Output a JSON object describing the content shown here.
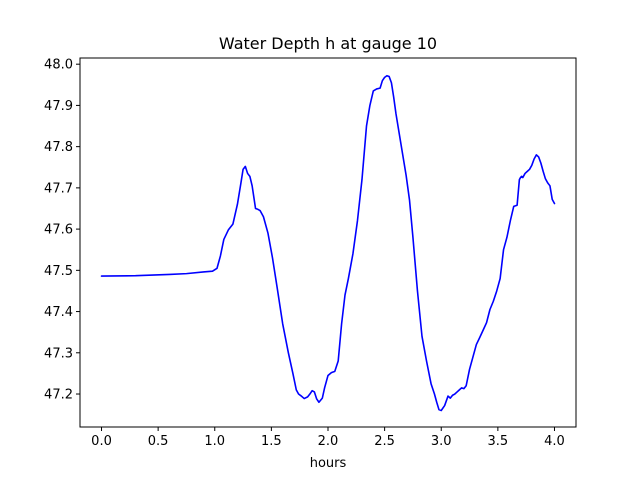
{
  "chart_data": {
    "type": "line",
    "title": "Water Depth h at gauge 10",
    "xlabel": "hours",
    "ylabel": "",
    "xlim": [
      -0.19,
      4.19
    ],
    "ylim": [
      47.12,
      48.015
    ],
    "xticks": [
      0.0,
      0.5,
      1.0,
      1.5,
      2.0,
      2.5,
      3.0,
      3.5,
      4.0
    ],
    "xtick_labels": [
      "0.0",
      "0.5",
      "1.0",
      "1.5",
      "2.0",
      "2.5",
      "3.0",
      "3.5",
      "4.0"
    ],
    "yticks": [
      47.2,
      47.3,
      47.4,
      47.5,
      47.6,
      47.7,
      47.8,
      47.9,
      48.0
    ],
    "ytick_labels": [
      "47.2",
      "47.3",
      "47.4",
      "47.5",
      "47.6",
      "47.7",
      "47.8",
      "47.9",
      "48.0"
    ],
    "grid": false,
    "series": [
      {
        "color": "#0000ff",
        "x": [
          0.0,
          0.3,
          0.6,
          0.75,
          0.9,
          0.98,
          1.02,
          1.05,
          1.08,
          1.12,
          1.16,
          1.2,
          1.23,
          1.25,
          1.27,
          1.29,
          1.31,
          1.33,
          1.36,
          1.38,
          1.4,
          1.43,
          1.47,
          1.51,
          1.55,
          1.6,
          1.65,
          1.69,
          1.72,
          1.74,
          1.76,
          1.79,
          1.82,
          1.84,
          1.86,
          1.88,
          1.9,
          1.92,
          1.95,
          1.97,
          2.0,
          2.03,
          2.06,
          2.09,
          2.12,
          2.15,
          2.18,
          2.22,
          2.26,
          2.3,
          2.34,
          2.37,
          2.4,
          2.43,
          2.46,
          2.48,
          2.5,
          2.52,
          2.54,
          2.56,
          2.58,
          2.6,
          2.63,
          2.66,
          2.69,
          2.72,
          2.75,
          2.79,
          2.83,
          2.87,
          2.91,
          2.94,
          2.96,
          2.98,
          3.0,
          3.03,
          3.06,
          3.08,
          3.1,
          3.12,
          3.14,
          3.16,
          3.18,
          3.2,
          3.22,
          3.25,
          3.28,
          3.31,
          3.34,
          3.37,
          3.4,
          3.43,
          3.46,
          3.49,
          3.52,
          3.55,
          3.58,
          3.61,
          3.64,
          3.67,
          3.69,
          3.7,
          3.71,
          3.72,
          3.74,
          3.76,
          3.78,
          3.8,
          3.82,
          3.84,
          3.86,
          3.88,
          3.9,
          3.92,
          3.94,
          3.96,
          3.98,
          4.0
        ],
        "y": [
          47.486,
          47.487,
          47.49,
          47.492,
          47.496,
          47.498,
          47.505,
          47.535,
          47.575,
          47.598,
          47.612,
          47.66,
          47.71,
          47.745,
          47.752,
          47.735,
          47.728,
          47.705,
          47.65,
          47.648,
          47.645,
          47.63,
          47.59,
          47.53,
          47.46,
          47.37,
          47.3,
          47.25,
          47.21,
          47.2,
          47.196,
          47.189,
          47.193,
          47.2,
          47.208,
          47.205,
          47.188,
          47.18,
          47.19,
          47.215,
          47.245,
          47.252,
          47.255,
          47.28,
          47.37,
          47.44,
          47.48,
          47.54,
          47.62,
          47.72,
          47.85,
          47.9,
          47.935,
          47.94,
          47.942,
          47.96,
          47.968,
          47.972,
          47.97,
          47.955,
          47.92,
          47.88,
          47.83,
          47.78,
          47.73,
          47.67,
          47.58,
          47.45,
          47.34,
          47.28,
          47.225,
          47.2,
          47.18,
          47.162,
          47.16,
          47.172,
          47.195,
          47.19,
          47.197,
          47.2,
          47.205,
          47.21,
          47.215,
          47.213,
          47.22,
          47.26,
          47.29,
          47.32,
          47.337,
          47.355,
          47.373,
          47.405,
          47.425,
          47.45,
          47.48,
          47.55,
          47.58,
          47.62,
          47.655,
          47.658,
          47.72,
          47.725,
          47.728,
          47.725,
          47.735,
          47.74,
          47.745,
          47.755,
          47.77,
          47.78,
          47.775,
          47.76,
          47.74,
          47.722,
          47.712,
          47.705,
          47.672,
          47.662
        ]
      }
    ]
  }
}
